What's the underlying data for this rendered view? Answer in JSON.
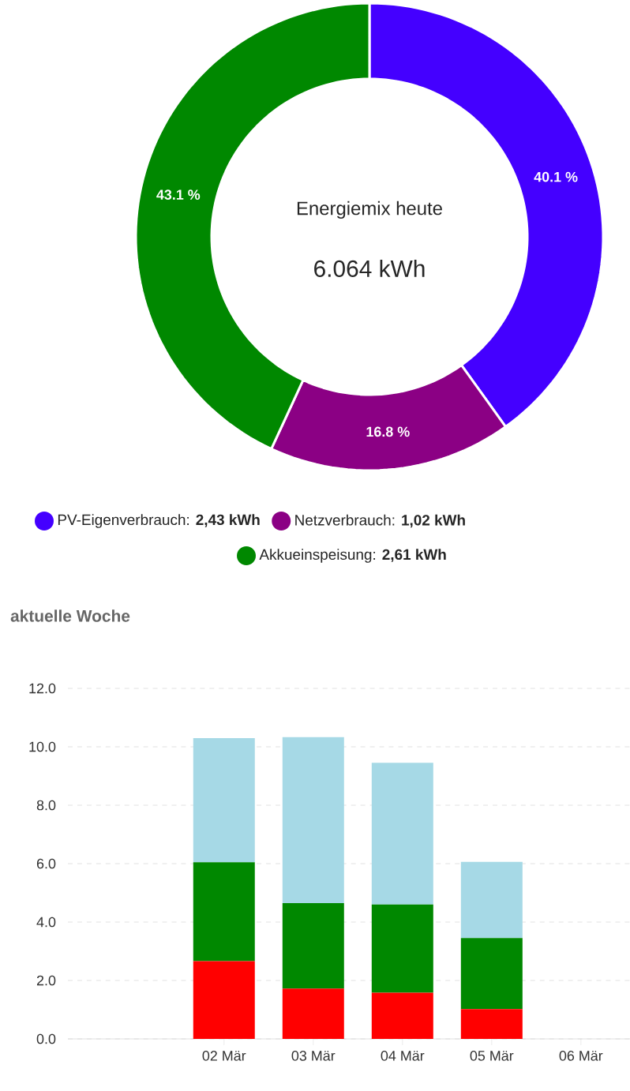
{
  "chart_data": [
    {
      "type": "donut",
      "title": "Energiemix heute",
      "subtitle": "6.064 kWh",
      "categories": [
        "PV-Eigenverbrauch: **2,43 kWh**",
        "Netzverbrauch: **1,02 kWh**",
        "Akkueinspeisung: **2,61 kWh**"
      ],
      "values": [
        40.1,
        16.8,
        43.1
      ],
      "value_labels": [
        "40.1 %",
        "16.8 %",
        "43.1 %"
      ],
      "colors": [
        "#4400ff",
        "#8b0084",
        "#008800"
      ],
      "legend": "bottom"
    },
    {
      "type": "bar",
      "title": "aktuelle Woche",
      "stacked": true,
      "categories": [
        null,
        "02 Mär",
        "03 Mär",
        "04 Mär",
        "05 Mär",
        "06 Mär"
      ],
      "series": [
        {
          "color": "#ff0000",
          "values": [
            null,
            2.66,
            1.72,
            1.58,
            1.02,
            null
          ]
        },
        {
          "color": "#008800",
          "values": [
            null,
            3.39,
            2.93,
            3.02,
            2.43,
            null
          ]
        },
        {
          "color": "#a6d9e6",
          "values": [
            null,
            4.25,
            5.68,
            4.85,
            2.61,
            null
          ]
        }
      ],
      "ylim": [
        0,
        12
      ],
      "yticks": [
        {
          "value": 0,
          "label": "0.0"
        },
        {
          "value": 2,
          "label": "2.0"
        },
        {
          "value": 4,
          "label": "4.0"
        },
        {
          "value": 6,
          "label": "6.0"
        },
        {
          "value": 8,
          "label": "8.0"
        },
        {
          "value": 10,
          "label": "10.0"
        },
        {
          "value": 12,
          "label": "12.0"
        }
      ],
      "grid": "y"
    }
  ]
}
